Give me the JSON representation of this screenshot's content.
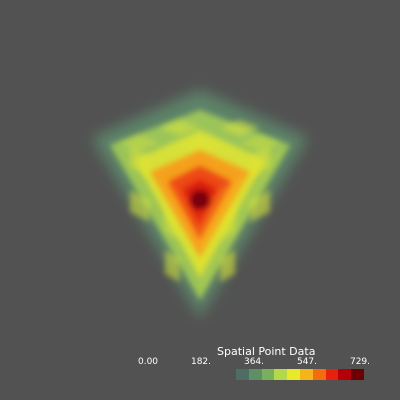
{
  "render_view": {
    "background_color": "#525252",
    "subject": "volume-rendered cube with scalar colormap"
  },
  "scalar_bar": {
    "title": "Spatial Point Data",
    "tick_labels": [
      "0.00",
      "182.",
      "364.",
      "547.",
      "729."
    ],
    "range": [
      0.0,
      729.0
    ],
    "colors": [
      "#4f6e63",
      "#5f8f64",
      "#78b15c",
      "#b3d94b",
      "#e6ea2a",
      "#f5b418",
      "#f36d0f",
      "#e8210d",
      "#b3000a",
      "#6d0005"
    ]
  }
}
